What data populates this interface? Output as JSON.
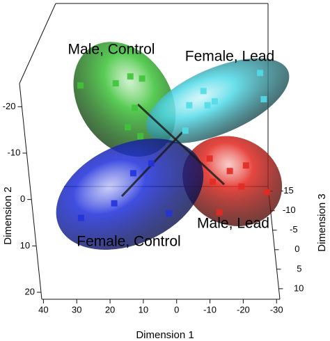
{
  "chart_data": {
    "type": "scatter3d",
    "xlabel": "Dimension 1",
    "ylabel": "Dimension 2",
    "zlabel": "Dimension 3",
    "xlim": [
      40.5,
      -31
    ],
    "ylim": [
      -25,
      21.5
    ],
    "zlim": [
      -16.2,
      12.7
    ],
    "xticks": [
      40,
      30,
      20,
      10,
      0,
      -10,
      -20,
      -30
    ],
    "yticks": [
      -20,
      -10,
      0,
      10,
      20
    ],
    "zticks": [
      -15,
      -10,
      -5,
      0,
      5,
      10
    ],
    "series": [
      {
        "name": "Male, Control",
        "color": "#3fc43a",
        "x": [
          28.7,
          14.1,
          10.7,
          18.4,
          13.0,
          15.2,
          11.5
        ],
        "y": [
          -15.6,
          -17.7,
          -17.2,
          -16.1,
          -10.4,
          -5.9,
          -3.8
        ],
        "z": [
          -1.2,
          -1.2,
          -1.2,
          -1.2,
          -1.2,
          -1.2,
          -1.2
        ]
      },
      {
        "name": "Female, Lead",
        "color": "#52dbe8",
        "x": [
          -23.5,
          -7.2,
          -3.1,
          -10.6,
          -8.5,
          -25.0,
          -2.0
        ],
        "y": [
          -18.5,
          -14.3,
          -11.0,
          -11.9,
          -11.0,
          -12.4,
          -5.1
        ],
        "z": [
          -1.2,
          -1.2,
          -1.2,
          -1.2,
          -1.2,
          -1.2,
          -1.2
        ]
      },
      {
        "name": "Male, Lead",
        "color": "#e32a22",
        "x": [
          -9.5,
          -15.8,
          -20.7,
          -19.6,
          -27.6,
          -13.0,
          -10.6
        ],
        "y": [
          1.4,
          4.3,
          3.0,
          7.9,
          9.2,
          13.9,
          6.8
        ],
        "z": [
          -1.2,
          -1.2,
          -1.2,
          -1.2,
          -1.2,
          -1.2,
          -1.2
        ]
      },
      {
        "name": "Female, Control",
        "color": "#2233dd",
        "x": [
          8.3,
          13.9,
          20.1,
          2.9,
          30.8
        ],
        "y": [
          2.5,
          4.8,
          11.8,
          14.1,
          15.2
        ],
        "z": [
          -1.2,
          -1.2,
          -1.2,
          -1.2,
          -1.2
        ]
      }
    ]
  }
}
